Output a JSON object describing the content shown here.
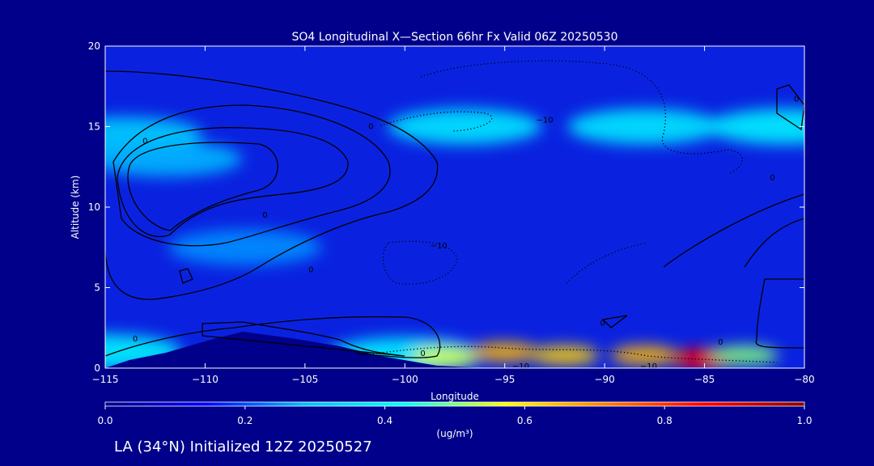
{
  "chart_data": {
    "type": "heatmap",
    "title": "SO4 Longitudinal X—Section 66hr  Fx Valid 06Z 20250530",
    "xlabel": "Longitude",
    "ylabel": "Altitude (km)",
    "xlim": [
      -115,
      -80
    ],
    "ylim": [
      0,
      20
    ],
    "x_ticks": [
      -115,
      -110,
      -105,
      -100,
      -95,
      -90,
      -85,
      -80
    ],
    "x_tick_labels": [
      "−115",
      "−110",
      "−105",
      "−100",
      "−95",
      "−90",
      "−85",
      "−80"
    ],
    "y_ticks": [
      0,
      5,
      10,
      15,
      20
    ],
    "y_tick_labels": [
      "0",
      "5",
      "10",
      "15",
      "20"
    ],
    "colorbar": {
      "min": 0.0,
      "max": 1.0,
      "ticks": [
        0.0,
        0.2,
        0.4,
        0.6,
        0.8,
        1.0
      ],
      "tick_labels": [
        "0.0",
        "0.2",
        "0.4",
        "0.6",
        "0.8",
        "1.0"
      ],
      "unit_label": "(ug/m³)",
      "colors": [
        "#00008b",
        "#0000ff",
        "#00bfff",
        "#00ffff",
        "#ffff00",
        "#ff8000",
        "#ff0000",
        "#8b0000"
      ]
    },
    "field": [
      {
        "lon": -115,
        "alt": 1.0,
        "value": 0.4
      },
      {
        "lon": -114,
        "alt": 14.5,
        "value": 0.32
      },
      {
        "lon": -112,
        "alt": 13.0,
        "value": 0.28
      },
      {
        "lon": -108,
        "alt": 7.5,
        "value": 0.25
      },
      {
        "lon": -97,
        "alt": 15.0,
        "value": 0.38
      },
      {
        "lon": -88,
        "alt": 15.0,
        "value": 0.38
      },
      {
        "lon": -81,
        "alt": 15.0,
        "value": 0.4
      },
      {
        "lon": -100,
        "alt": 0.8,
        "value": 0.4
      },
      {
        "lon": -98,
        "alt": 0.7,
        "value": 0.55
      },
      {
        "lon": -95,
        "alt": 1.0,
        "value": 0.65
      },
      {
        "lon": -92,
        "alt": 0.8,
        "value": 0.62
      },
      {
        "lon": -88,
        "alt": 0.8,
        "value": 0.65
      },
      {
        "lon": -85,
        "alt": 0.6,
        "value": 0.85
      },
      {
        "lon": -83,
        "alt": 0.8,
        "value": 0.5
      }
    ],
    "contour_labels": [
      {
        "text": "0",
        "lon": -101.7,
        "alt": 15.0
      },
      {
        "text": "0",
        "lon": -113.0,
        "alt": 14.1
      },
      {
        "text": "0",
        "lon": -107.0,
        "alt": 9.5
      },
      {
        "text": "0",
        "lon": -104.7,
        "alt": 6.1
      },
      {
        "text": "0",
        "lon": -113.5,
        "alt": 1.8
      },
      {
        "text": "0",
        "lon": -99.1,
        "alt": 0.9
      },
      {
        "text": "0",
        "lon": -90.1,
        "alt": 2.8
      },
      {
        "text": "0",
        "lon": -81.6,
        "alt": 11.8
      },
      {
        "text": "0",
        "lon": -84.2,
        "alt": 1.6
      },
      {
        "text": "0",
        "lon": -80.4,
        "alt": 16.7
      },
      {
        "text": "−10",
        "lon": -93.0,
        "alt": 15.4
      },
      {
        "text": "−10",
        "lon": -98.3,
        "alt": 7.6
      },
      {
        "text": "−10",
        "lon": -94.2,
        "alt": 0.1
      },
      {
        "text": "−10",
        "lon": -87.8,
        "alt": 0.1
      }
    ]
  },
  "footer_text": "LA (34°N) Initialized 12Z 20250527"
}
